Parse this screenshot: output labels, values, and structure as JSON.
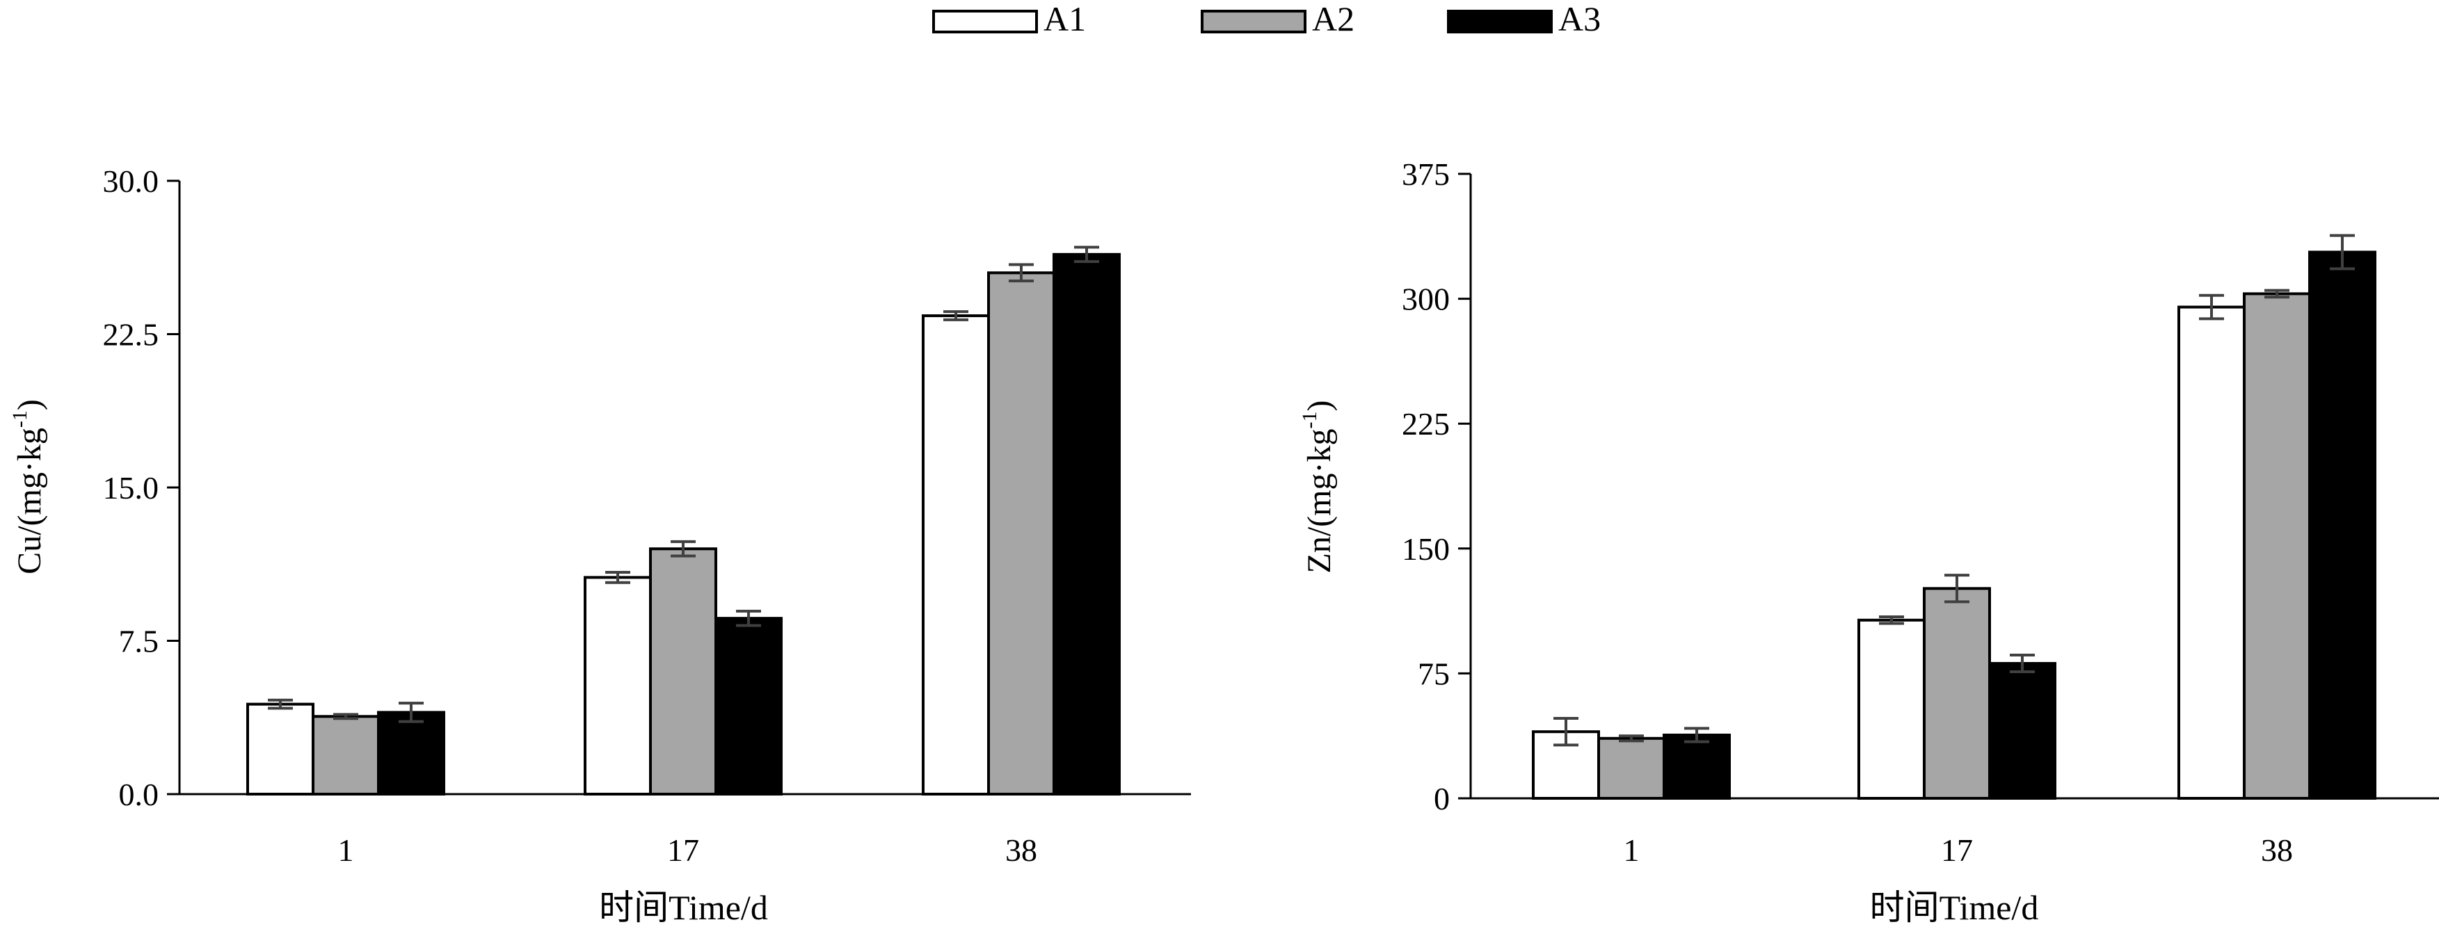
{
  "legend": [
    {
      "name": "A1",
      "color": "#ffffff"
    },
    {
      "name": "A2",
      "color": "#a6a6a6"
    },
    {
      "name": "A3",
      "color": "#000000"
    }
  ],
  "chart_data": [
    {
      "type": "bar",
      "categories": [
        "1",
        "17",
        "38"
      ],
      "series": [
        {
          "name": "A1",
          "color": "#ffffff",
          "values": [
            4.4,
            10.6,
            23.4
          ],
          "errors": [
            0.2,
            0.25,
            0.2
          ]
        },
        {
          "name": "A2",
          "color": "#a6a6a6",
          "values": [
            3.8,
            12.0,
            25.5
          ],
          "errors": [
            0.1,
            0.35,
            0.4
          ]
        },
        {
          "name": "A3",
          "color": "#000000",
          "values": [
            4.0,
            8.6,
            26.4
          ],
          "errors": [
            0.45,
            0.35,
            0.35
          ]
        }
      ],
      "xlabel": "时间Time/d",
      "ylabel_main": "Cu/(mg·kg",
      "ylabel_sup": "-1",
      "ylabel_tail": ")",
      "ylim": [
        0,
        30
      ],
      "yticks": [
        "0.0",
        "7.5",
        "15.0",
        "22.5",
        "30.0"
      ],
      "grid": false,
      "legend_position": "top-center"
    },
    {
      "type": "bar",
      "categories": [
        "1",
        "17",
        "38"
      ],
      "series": [
        {
          "name": "A1",
          "color": "#ffffff",
          "values": [
            40,
            107,
            295
          ],
          "errors": [
            8,
            2,
            7
          ]
        },
        {
          "name": "A2",
          "color": "#a6a6a6",
          "values": [
            36,
            126,
            303
          ],
          "errors": [
            1.5,
            8,
            2
          ]
        },
        {
          "name": "A3",
          "color": "#000000",
          "values": [
            38,
            81,
            328
          ],
          "errors": [
            4,
            5,
            10
          ]
        }
      ],
      "xlabel": "时间Time/d",
      "ylabel_main": "Zn/(mg·kg",
      "ylabel_sup": "-1",
      "ylabel_tail": ")",
      "ylim": [
        0,
        375
      ],
      "yticks": [
        "0",
        "75",
        "150",
        "225",
        "300",
        "375"
      ],
      "grid": false,
      "legend_position": "top-center"
    }
  ]
}
